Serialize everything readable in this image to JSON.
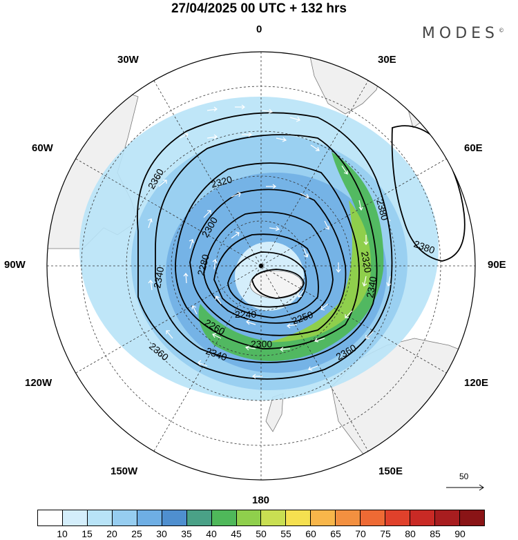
{
  "header": {
    "title": "27/04/2025  00 UTC  + 132 hrs",
    "brand": "MODES",
    "brand_mark": "©"
  },
  "map": {
    "projection": "south-polar-stereographic",
    "longitude_labels": {
      "top": "0",
      "bottom": "180",
      "left": "90W",
      "right": "90E",
      "upper_left_1": "30W",
      "upper_left_2": "60W",
      "lower_left_1": "120W",
      "lower_left_2": "150W",
      "upper_right_1": "30E",
      "upper_right_2": "60E",
      "lower_right_1": "120E",
      "lower_right_2": "150E"
    },
    "contour_labels": [
      "2360",
      "2320",
      "2300",
      "2280",
      "2340",
      "2240",
      "2250",
      "2260",
      "2300",
      "2360",
      "2340",
      "2320",
      "2340",
      "2360",
      "2380",
      "2380"
    ],
    "vector_reference": "50",
    "colors": {
      "land": "#f0f0f0",
      "land_edge": "#777777",
      "contour": "#000000",
      "vector": "#ffffff"
    }
  },
  "colorbar": {
    "ticks": [
      "10",
      "15",
      "20",
      "25",
      "30",
      "35",
      "40",
      "45",
      "50",
      "55",
      "60",
      "65",
      "70",
      "75",
      "80",
      "85",
      "90"
    ],
    "colors": [
      "#ffffff",
      "#d4eefb",
      "#b8e3f7",
      "#96cdf0",
      "#6eaee4",
      "#4f8fcf",
      "#4aa187",
      "#4fb85a",
      "#8fcf4c",
      "#c9df52",
      "#f5e050",
      "#f8b64a",
      "#f39040",
      "#ee6a34",
      "#e0412b",
      "#c92a25",
      "#a81d1f",
      "#8a1416"
    ]
  }
}
